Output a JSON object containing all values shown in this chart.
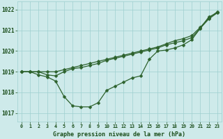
{
  "title": "Graphe pression niveau de la mer (hPa)",
  "xlabel_hours": [
    0,
    1,
    2,
    3,
    4,
    5,
    6,
    7,
    8,
    9,
    10,
    11,
    12,
    13,
    14,
    15,
    16,
    17,
    18,
    19,
    20,
    21,
    22,
    23
  ],
  "ylim": [
    1016.6,
    1022.4
  ],
  "yticks": [
    1017,
    1018,
    1019,
    1020,
    1021,
    1022
  ],
  "background_color": "#ceeaea",
  "grid_color": "#9ecfcf",
  "line_color": "#2d622d",
  "series": {
    "line_low": [
      1019.0,
      1019.0,
      1018.85,
      1018.75,
      1018.55,
      1017.8,
      1017.35,
      1017.3,
      1017.3,
      1017.5,
      1018.1,
      1018.3,
      1018.5,
      1018.7,
      1018.8,
      1019.6,
      1020.0,
      1020.05,
      1020.15,
      1020.3,
      1020.55,
      1021.1,
      1021.65,
      1021.85
    ],
    "line_mid": [
      1019.0,
      1019.0,
      1019.0,
      1018.85,
      1018.8,
      1019.0,
      1019.15,
      1019.2,
      1019.3,
      1019.4,
      1019.55,
      1019.65,
      1019.75,
      1019.85,
      1019.95,
      1020.05,
      1020.15,
      1020.3,
      1020.4,
      1020.5,
      1020.65,
      1021.1,
      1021.55,
      1021.85
    ],
    "line_high": [
      1019.0,
      1019.0,
      1019.0,
      1019.0,
      1019.0,
      1019.1,
      1019.2,
      1019.3,
      1019.4,
      1019.5,
      1019.6,
      1019.7,
      1019.8,
      1019.9,
      1020.0,
      1020.1,
      1020.2,
      1020.35,
      1020.5,
      1020.6,
      1020.75,
      1021.15,
      1021.6,
      1021.9
    ]
  },
  "text_color": "#1a4d1a",
  "marker": "D",
  "markersize": 2.5,
  "linewidth": 0.9
}
